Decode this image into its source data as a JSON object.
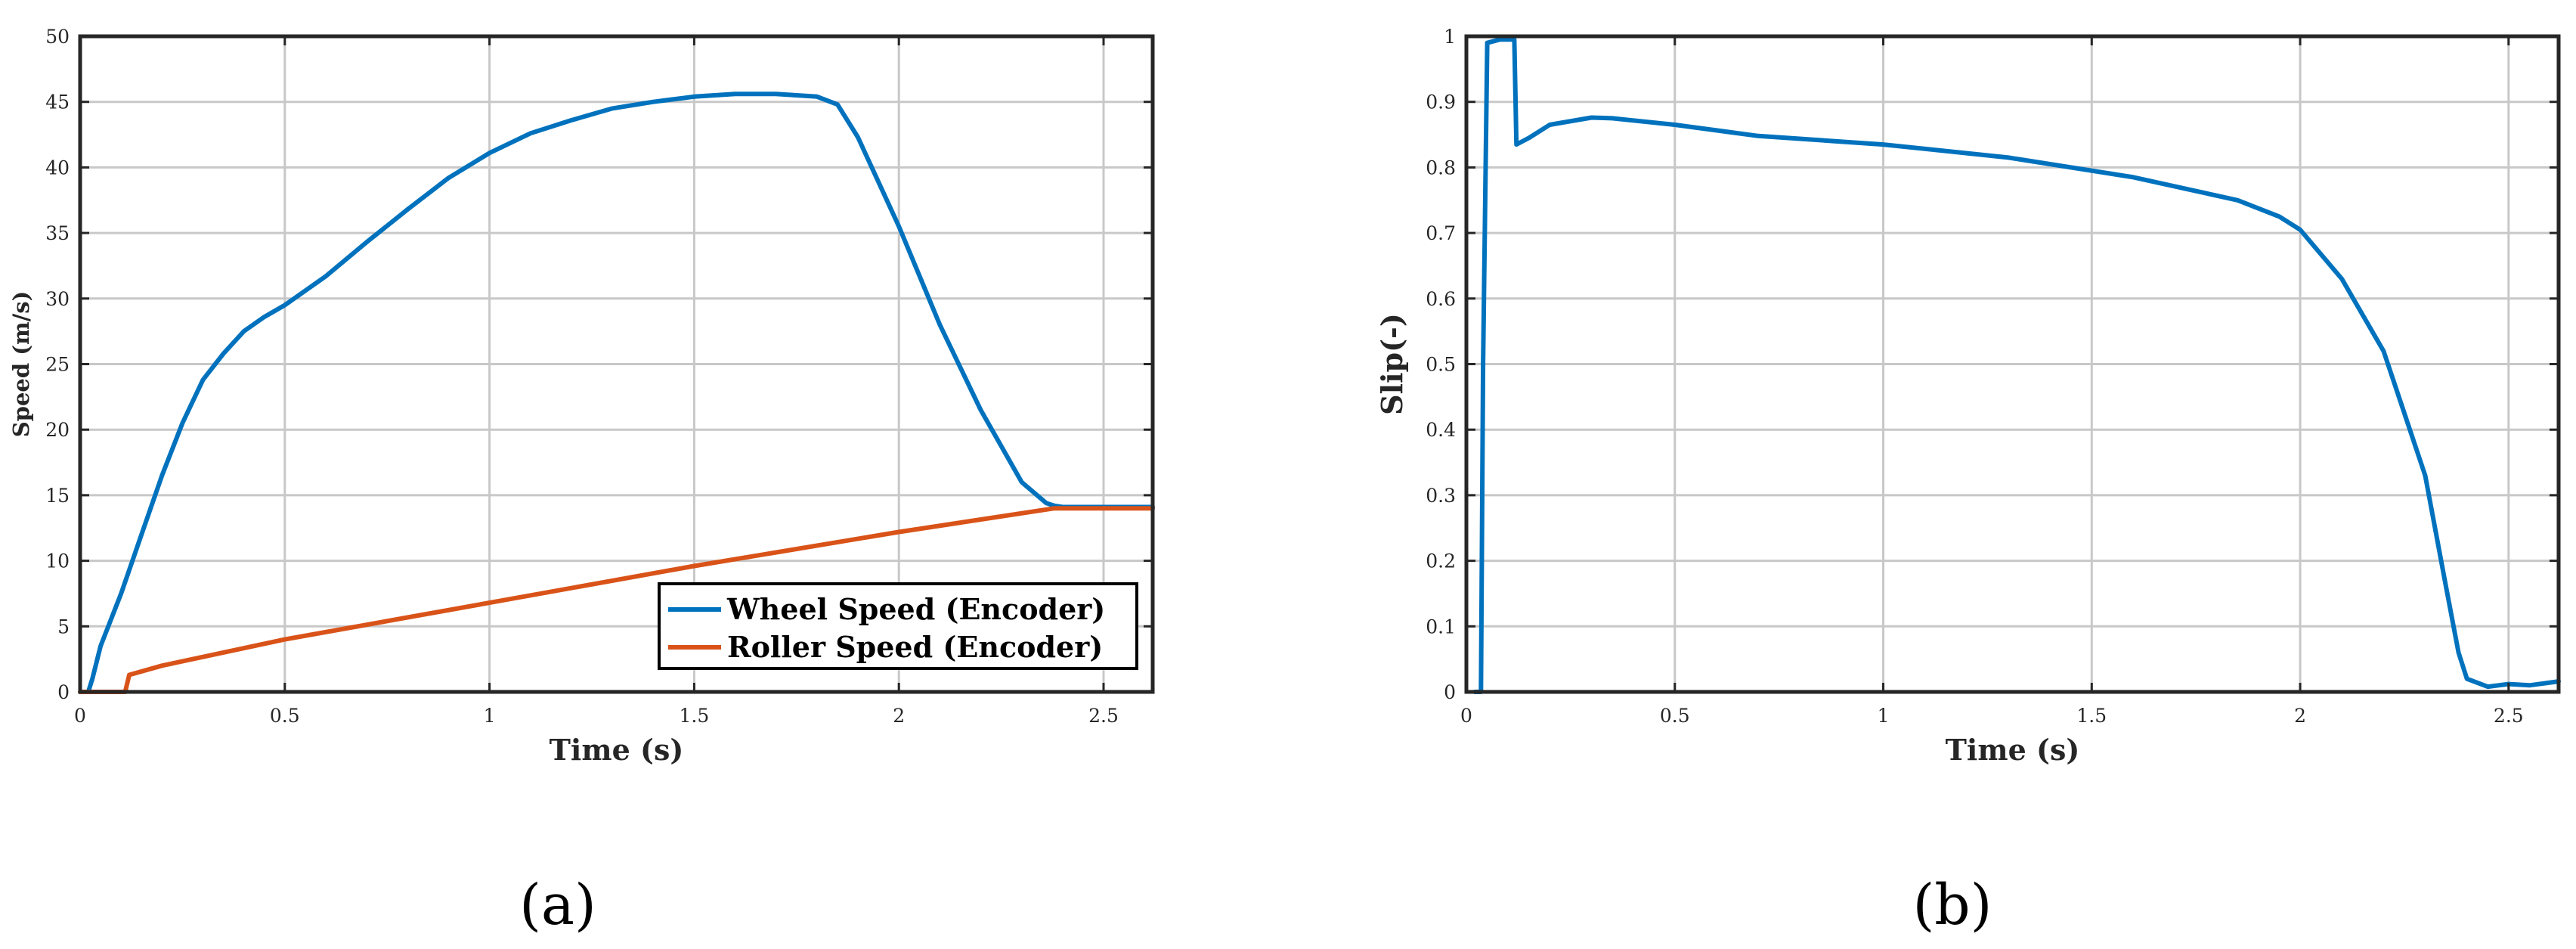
{
  "colors": {
    "wheel": "#0072BD",
    "roller": "#D95319",
    "grid": "#c8c8c8",
    "axis": "#262626"
  },
  "panel_labels": [
    "(a)",
    "(b)"
  ],
  "chart_data": [
    {
      "type": "line",
      "xlabel": "Time (s)",
      "ylabel": "Speed (m/s)",
      "xlim": [
        0,
        2.62
      ],
      "ylim": [
        0,
        50
      ],
      "xticks": [
        "0",
        "0.5",
        "1",
        "1.5",
        "2",
        "2.5"
      ],
      "yticks": [
        "0",
        "5",
        "10",
        "15",
        "20",
        "25",
        "30",
        "35",
        "40",
        "45",
        "50"
      ],
      "grid": true,
      "legend_position": "bottom-right",
      "series": [
        {
          "name": "Wheel Speed (Encoder)",
          "x": [
            0,
            0.02,
            0.03,
            0.05,
            0.1,
            0.15,
            0.2,
            0.25,
            0.3,
            0.35,
            0.4,
            0.45,
            0.5,
            0.6,
            0.7,
            0.8,
            0.9,
            1.0,
            1.1,
            1.2,
            1.3,
            1.4,
            1.5,
            1.6,
            1.7,
            1.8,
            1.85,
            1.9,
            2.0,
            2.1,
            2.2,
            2.3,
            2.36,
            2.38,
            2.4,
            2.62
          ],
          "y": [
            0,
            0,
            1.0,
            3.5,
            7.5,
            12,
            16.5,
            20.5,
            23.8,
            25.8,
            27.5,
            28.6,
            29.5,
            31.7,
            34.3,
            36.8,
            39.2,
            41.1,
            42.6,
            43.6,
            44.5,
            45.0,
            45.4,
            45.6,
            45.6,
            45.4,
            44.8,
            42.3,
            35.5,
            28.0,
            21.5,
            16.0,
            14.4,
            14.2,
            14.1,
            14.1
          ]
        },
        {
          "name": "Roller Speed (Encoder)",
          "x": [
            0,
            0.11,
            0.12,
            0.2,
            0.5,
            1.0,
            1.5,
            2.0,
            2.38,
            2.62
          ],
          "y": [
            0,
            0,
            1.3,
            2.0,
            4.0,
            6.8,
            9.6,
            12.2,
            14.0,
            14.0
          ]
        }
      ]
    },
    {
      "type": "line",
      "xlabel": "Time (s)",
      "ylabel": "Slip(-)",
      "xlim": [
        0,
        2.62
      ],
      "ylim": [
        0,
        1
      ],
      "xticks": [
        "0",
        "0.5",
        "1",
        "1.5",
        "2",
        "2.5"
      ],
      "yticks": [
        "0",
        "0.1",
        "0.2",
        "0.3",
        "0.4",
        "0.5",
        "0.6",
        "0.7",
        "0.8",
        "0.9",
        "1"
      ],
      "grid": true,
      "series": [
        {
          "x": [
            0.02,
            0.035,
            0.04,
            0.05,
            0.08,
            0.1,
            0.115,
            0.12,
            0.15,
            0.2,
            0.3,
            0.35,
            0.5,
            0.7,
            1.0,
            1.3,
            1.6,
            1.85,
            1.95,
            2.0,
            2.1,
            2.2,
            2.3,
            2.35,
            2.38,
            2.4,
            2.45,
            2.5,
            2.55,
            2.62
          ],
          "y": [
            0,
            0,
            0.5,
            0.99,
            0.995,
            0.995,
            0.995,
            0.835,
            0.845,
            0.865,
            0.876,
            0.875,
            0.865,
            0.848,
            0.835,
            0.815,
            0.785,
            0.75,
            0.725,
            0.705,
            0.63,
            0.52,
            0.33,
            0.16,
            0.06,
            0.02,
            0.008,
            0.012,
            0.01,
            0.016
          ]
        }
      ]
    }
  ]
}
